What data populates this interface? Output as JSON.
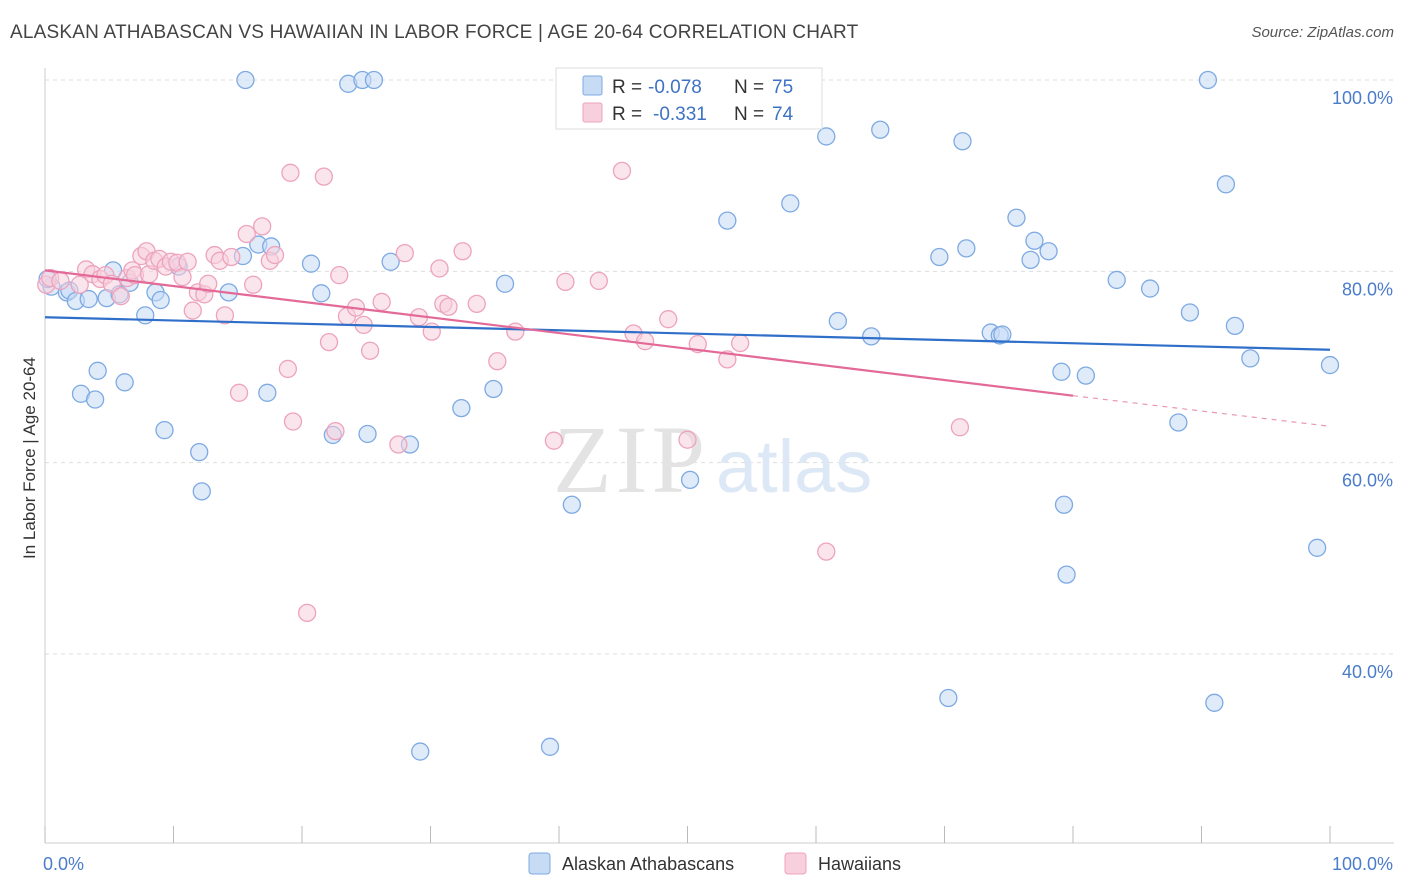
{
  "title": "ALASKAN ATHABASCAN VS HAWAIIAN IN LABOR FORCE | AGE 20-64 CORRELATION CHART",
  "source": "Source: ZipAtlas.com",
  "watermark": {
    "zip": "ZIP",
    "atlas": "atlas"
  },
  "stats": [
    {
      "r_label": "R =",
      "r_value": "-0.078",
      "n_label": "N =",
      "n_value": "75"
    },
    {
      "r_label": "R =",
      "r_value": "-0.331",
      "n_label": "N =",
      "n_value": "74"
    }
  ],
  "colors": {
    "blue_fill": "#c7dbf5",
    "blue_stroke": "#7eaae3",
    "blue_line": "#2f6fc9",
    "pink_fill": "#f8cfdc",
    "pink_stroke": "#eda3bd",
    "pink_line": "#e36a97",
    "grid": "#dddddd",
    "tick": "#4a7cc9"
  },
  "chart_data": {
    "type": "scatter",
    "xlabel": "",
    "ylabel": "In Labor Force | Age 20-64",
    "xlim": [
      0,
      100
    ],
    "ylim": [
      20,
      100
    ],
    "x_tick_labels": [
      "0.0%",
      "100.0%"
    ],
    "y_tick_labels": [
      "100.0%",
      "80.0%",
      "60.0%",
      "40.0%"
    ],
    "y_ticks": [
      100,
      80,
      60,
      40
    ],
    "grid": true,
    "legend": "bottom-center",
    "series": [
      {
        "name": "Alaskan Athabascans",
        "trend": {
          "x": [
            0,
            100
          ],
          "y": [
            75.2,
            71.8
          ],
          "dashed_from": null
        },
        "points": [
          [
            0.5,
            78.4
          ],
          [
            1.7,
            77.8
          ],
          [
            1.9,
            78.0
          ],
          [
            2.4,
            76.9
          ],
          [
            2.8,
            67.2
          ],
          [
            3.4,
            77.1
          ],
          [
            3.9,
            66.6
          ],
          [
            4.1,
            69.6
          ],
          [
            4.8,
            77.2
          ],
          [
            5.3,
            80.1
          ],
          [
            5.8,
            77.6
          ],
          [
            6.2,
            68.4
          ],
          [
            6.6,
            78.8
          ],
          [
            7.8,
            75.4
          ],
          [
            8.6,
            77.8
          ],
          [
            9.0,
            77.0
          ],
          [
            9.3,
            63.4
          ],
          [
            10.4,
            80.5
          ],
          [
            12.0,
            61.1
          ],
          [
            12.2,
            57.0
          ],
          [
            14.3,
            77.8
          ],
          [
            15.4,
            81.6
          ],
          [
            15.6,
            100.0
          ],
          [
            16.6,
            82.8
          ],
          [
            17.3,
            67.3
          ],
          [
            17.6,
            82.6
          ],
          [
            20.7,
            80.8
          ],
          [
            21.5,
            77.7
          ],
          [
            22.4,
            62.9
          ],
          [
            23.6,
            99.6
          ],
          [
            24.7,
            100.0
          ],
          [
            25.6,
            100.0
          ],
          [
            25.1,
            63.0
          ],
          [
            26.9,
            81.0
          ],
          [
            28.4,
            61.9
          ],
          [
            29.2,
            29.8
          ],
          [
            32.4,
            65.7
          ],
          [
            34.9,
            67.7
          ],
          [
            35.8,
            78.7
          ],
          [
            39.3,
            30.3
          ],
          [
            41.0,
            55.6
          ],
          [
            50.2,
            58.2
          ],
          [
            53.1,
            85.3
          ],
          [
            58.0,
            87.1
          ],
          [
            60.8,
            94.1
          ],
          [
            61.7,
            74.8
          ],
          [
            64.3,
            73.2
          ],
          [
            65.0,
            94.8
          ],
          [
            69.6,
            81.5
          ],
          [
            70.3,
            35.4
          ],
          [
            71.4,
            93.6
          ],
          [
            71.7,
            82.4
          ],
          [
            73.6,
            73.6
          ],
          [
            74.3,
            73.3
          ],
          [
            74.5,
            73.4
          ],
          [
            75.6,
            85.6
          ],
          [
            76.7,
            81.2
          ],
          [
            77.0,
            83.2
          ],
          [
            78.1,
            82.1
          ],
          [
            79.1,
            69.5
          ],
          [
            79.3,
            55.6
          ],
          [
            79.5,
            48.3
          ],
          [
            81.0,
            69.1
          ],
          [
            83.4,
            79.1
          ],
          [
            86.0,
            78.2
          ],
          [
            88.2,
            64.2
          ],
          [
            89.1,
            75.7
          ],
          [
            90.5,
            100.0
          ],
          [
            91.0,
            34.9
          ],
          [
            91.9,
            89.1
          ],
          [
            92.6,
            74.3
          ],
          [
            93.8,
            70.9
          ],
          [
            99.0,
            51.1
          ],
          [
            100.0,
            70.2
          ],
          [
            0.2,
            79.2
          ]
        ]
      },
      {
        "name": "Hawaiians",
        "trend": {
          "x": [
            0,
            80
          ],
          "y": [
            80.1,
            67.0
          ],
          "dashed_to": [
            100,
            63.8
          ]
        },
        "points": [
          [
            0.1,
            78.6
          ],
          [
            0.4,
            79.3
          ],
          [
            1.2,
            79.0
          ],
          [
            2.7,
            78.6
          ],
          [
            3.2,
            80.2
          ],
          [
            3.7,
            79.7
          ],
          [
            4.3,
            79.2
          ],
          [
            4.7,
            79.6
          ],
          [
            5.2,
            78.7
          ],
          [
            5.9,
            77.4
          ],
          [
            6.4,
            79.3
          ],
          [
            6.8,
            80.1
          ],
          [
            7.0,
            79.6
          ],
          [
            7.5,
            81.6
          ],
          [
            7.9,
            82.1
          ],
          [
            8.1,
            79.7
          ],
          [
            8.5,
            81.1
          ],
          [
            8.9,
            81.3
          ],
          [
            9.4,
            80.5
          ],
          [
            9.8,
            81.0
          ],
          [
            10.3,
            80.9
          ],
          [
            10.7,
            79.4
          ],
          [
            11.1,
            81.0
          ],
          [
            11.5,
            75.9
          ],
          [
            11.9,
            77.8
          ],
          [
            12.4,
            77.6
          ],
          [
            12.7,
            78.7
          ],
          [
            13.2,
            81.7
          ],
          [
            13.6,
            81.1
          ],
          [
            14.0,
            75.4
          ],
          [
            14.5,
            81.5
          ],
          [
            15.1,
            67.3
          ],
          [
            15.7,
            83.9
          ],
          [
            16.2,
            78.6
          ],
          [
            16.9,
            84.7
          ],
          [
            17.5,
            81.1
          ],
          [
            17.9,
            81.7
          ],
          [
            18.9,
            69.8
          ],
          [
            19.1,
            90.3
          ],
          [
            19.3,
            64.3
          ],
          [
            20.4,
            44.3
          ],
          [
            21.7,
            89.9
          ],
          [
            22.1,
            72.6
          ],
          [
            22.6,
            63.3
          ],
          [
            22.9,
            79.6
          ],
          [
            23.5,
            75.3
          ],
          [
            24.2,
            76.2
          ],
          [
            24.8,
            74.4
          ],
          [
            25.3,
            71.7
          ],
          [
            26.2,
            76.8
          ],
          [
            27.5,
            61.9
          ],
          [
            28.0,
            81.9
          ],
          [
            29.1,
            75.2
          ],
          [
            30.1,
            73.7
          ],
          [
            30.7,
            80.3
          ],
          [
            31.0,
            76.6
          ],
          [
            31.4,
            76.3
          ],
          [
            32.5,
            82.1
          ],
          [
            33.6,
            76.6
          ],
          [
            35.2,
            70.6
          ],
          [
            36.6,
            73.7
          ],
          [
            39.6,
            62.3
          ],
          [
            40.5,
            78.9
          ],
          [
            43.1,
            79.0
          ],
          [
            44.9,
            90.5
          ],
          [
            45.8,
            73.5
          ],
          [
            46.7,
            72.7
          ],
          [
            48.5,
            75.0
          ],
          [
            50.0,
            62.4
          ],
          [
            50.8,
            72.4
          ],
          [
            53.1,
            70.8
          ],
          [
            54.1,
            72.5
          ],
          [
            60.8,
            50.7
          ],
          [
            71.2,
            63.7
          ]
        ]
      }
    ]
  }
}
